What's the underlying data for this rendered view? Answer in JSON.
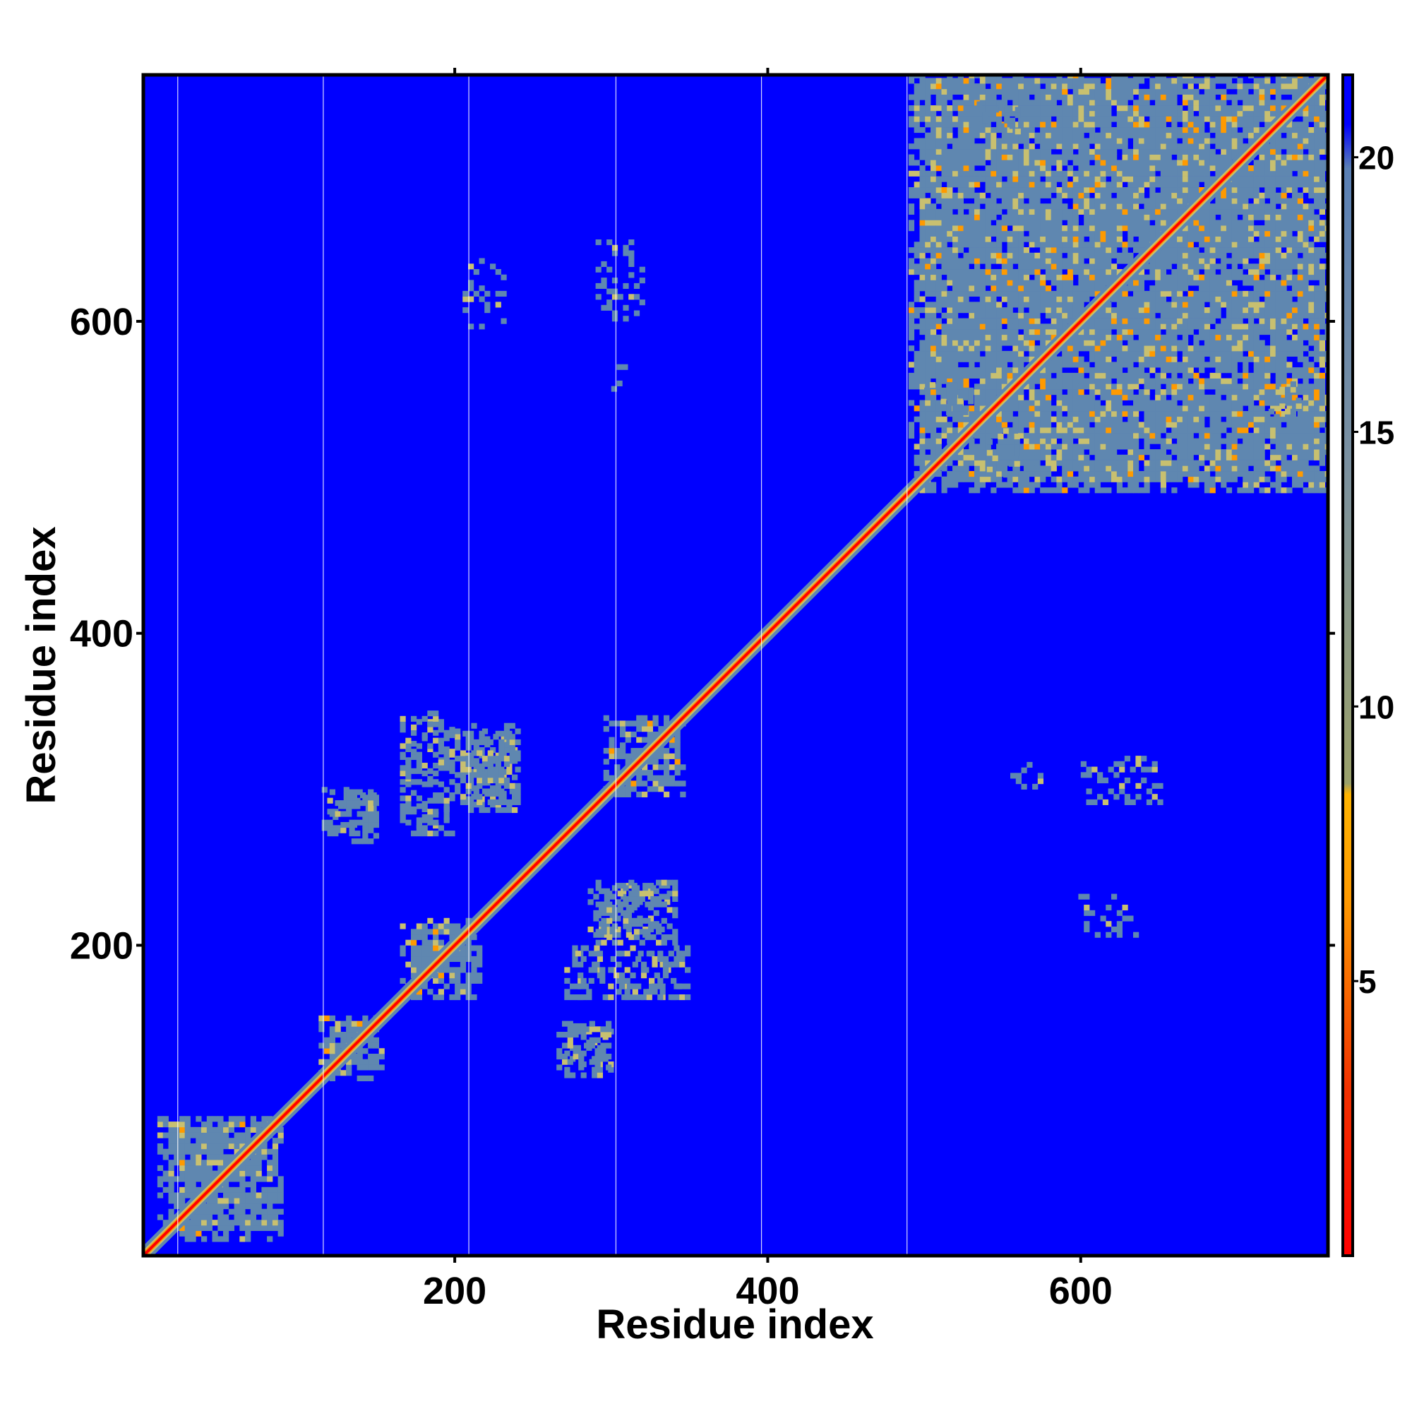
{
  "chart_data": {
    "type": "heatmap",
    "title": "",
    "xlabel": "Residue index",
    "ylabel": "Residue index",
    "xlim": [
      1,
      758
    ],
    "ylim": [
      1,
      758
    ],
    "x_ticks": [
      200,
      400,
      600
    ],
    "y_ticks": [
      200,
      400,
      600
    ],
    "colorbar": {
      "ticks": [
        5,
        10,
        15,
        20
      ],
      "range": [
        0,
        21.5
      ],
      "stops": [
        {
          "value": 0,
          "color": "#ff0000"
        },
        {
          "value": 3,
          "color": "#f03000"
        },
        {
          "value": 6.5,
          "color": "#ff9a00"
        },
        {
          "value": 8.4,
          "color": "#ffb300"
        },
        {
          "value": 8.6,
          "color": "#9aa06a"
        },
        {
          "value": 14.5,
          "color": "#7a90a0"
        },
        {
          "value": 19.8,
          "color": "#5a80b5"
        },
        {
          "value": 20.6,
          "color": "#0000ff"
        },
        {
          "value": 21.5,
          "color": "#0000ff"
        }
      ]
    },
    "background_color": "#0000ff",
    "diagonal_color": "#ff0000",
    "mid_color": "#5f87b0",
    "near_color": "#c8c070",
    "domain_boundaries": [
      23,
      116,
      209,
      303,
      396,
      489
    ],
    "domains": [
      {
        "start": 10,
        "end": 90,
        "density": 0.85
      },
      {
        "start": 113,
        "end": 155,
        "density": 0.75
      },
      {
        "start": 165,
        "end": 215,
        "density": 0.75
      },
      {
        "start": 295,
        "end": 345,
        "density": 0.7
      },
      {
        "start": 490,
        "end": 758,
        "density": 0.9
      }
    ],
    "contact_patches": [
      {
        "x": [
          205,
          240
        ],
        "y": [
          285,
          335
        ],
        "density": 0.55
      },
      {
        "x": [
          165,
          200
        ],
        "y": [
          275,
          345
        ],
        "density": 0.35
      },
      {
        "x": [
          115,
          150
        ],
        "y": [
          270,
          300
        ],
        "density": 0.35
      },
      {
        "x": [
          290,
          340
        ],
        "y": [
          200,
          240
        ],
        "density": 0.5
      },
      {
        "x": [
          270,
          350
        ],
        "y": [
          165,
          200
        ],
        "density": 0.3
      },
      {
        "x": [
          265,
          300
        ],
        "y": [
          120,
          150
        ],
        "density": 0.45
      },
      {
        "x": [
          540,
          560
        ],
        "y": [
          500,
          530
        ],
        "density": 0.35
      },
      {
        "x": [
          530,
          560
        ],
        "y": [
          720,
          740
        ],
        "density": 0.3
      },
      {
        "x": [
          600,
          650
        ],
        "y": [
          290,
          320
        ],
        "density": 0.3
      },
      {
        "x": [
          595,
          640
        ],
        "y": [
          205,
          230
        ],
        "density": 0.25
      },
      {
        "x": [
          555,
          575
        ],
        "y": [
          300,
          315
        ],
        "density": 0.2
      }
    ]
  }
}
